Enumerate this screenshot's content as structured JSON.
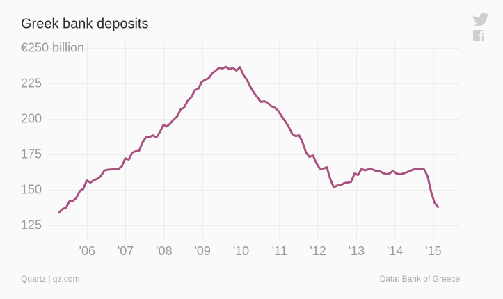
{
  "chart_data": {
    "type": "line",
    "title": "Greek bank deposits",
    "source": "Data: Bank of Greece",
    "credit": "Quartz | qz.com",
    "x": [
      2005.27,
      2005.36,
      2005.45,
      2005.54,
      2005.63,
      2005.72,
      2005.81,
      2005.9,
      2005.99,
      2006.08,
      2006.17,
      2006.26,
      2006.35,
      2006.45,
      2006.54,
      2006.63,
      2006.72,
      2006.81,
      2006.9,
      2006.99,
      2007.08,
      2007.17,
      2007.26,
      2007.35,
      2007.44,
      2007.53,
      2007.62,
      2007.71,
      2007.8,
      2007.89,
      2007.98,
      2008.07,
      2008.16,
      2008.25,
      2008.34,
      2008.43,
      2008.52,
      2008.61,
      2008.71,
      2008.8,
      2008.89,
      2008.98,
      2009.07,
      2009.16,
      2009.25,
      2009.34,
      2009.43,
      2009.52,
      2009.61,
      2009.7,
      2009.79,
      2009.88,
      2009.97,
      2010.06,
      2010.15,
      2010.24,
      2010.33,
      2010.42,
      2010.51,
      2010.6,
      2010.69,
      2010.78,
      2010.87,
      2010.97,
      2011.06,
      2011.15,
      2011.24,
      2011.33,
      2011.42,
      2011.51,
      2011.6,
      2011.69,
      2011.78,
      2011.87,
      2011.96,
      2012.05,
      2012.14,
      2012.23,
      2012.32,
      2012.41,
      2012.5,
      2012.59,
      2012.68,
      2012.77,
      2012.86,
      2012.95,
      2013.04,
      2013.13,
      2013.23,
      2013.32,
      2013.41,
      2013.5,
      2013.59,
      2013.68,
      2013.77,
      2013.86,
      2013.95,
      2014.04,
      2014.13,
      2014.22,
      2014.31,
      2014.4,
      2014.49,
      2014.58,
      2014.67,
      2014.76,
      2014.85,
      2014.94,
      2015.03,
      2015.12
    ],
    "series": [
      {
        "color": "#a8527f",
        "values": [
          134.3,
          136.8,
          137.7,
          142.3,
          142.6,
          144.6,
          149.5,
          151,
          157,
          155.4,
          157,
          158,
          159.8,
          164,
          164.5,
          164.7,
          164.8,
          165,
          166.7,
          172.5,
          171.6,
          176.5,
          177.5,
          177.8,
          183.8,
          187.3,
          187.5,
          188.7,
          187.3,
          191,
          196,
          195,
          197,
          200,
          202,
          207,
          208.3,
          213,
          215.7,
          220.6,
          221.6,
          226.5,
          228,
          229,
          232.4,
          234.3,
          236.3,
          235.8,
          237,
          235.3,
          236.3,
          234.3,
          236.8,
          231.4,
          228,
          223,
          219,
          215.7,
          212.3,
          212.8,
          211.8,
          209.3,
          208.3,
          205.9,
          202,
          198.5,
          194.6,
          189.7,
          188.2,
          188.7,
          183.8,
          176.5,
          173.5,
          174.5,
          169,
          165.2,
          165.3,
          166.2,
          157.8,
          152,
          153.4,
          153.5,
          155,
          155.4,
          155.9,
          161.8,
          160.8,
          165,
          164,
          165,
          164.7,
          163.7,
          163.6,
          162.3,
          161.3,
          161.8,
          163.7,
          161.8,
          161.3,
          161.8,
          162.7,
          163.7,
          164.7,
          165.2,
          165.1,
          164.7,
          159.8,
          149,
          141.2,
          138.2
        ]
      }
    ],
    "xlim": [
      2005.0,
      2015.67
    ],
    "xticks": [
      {
        "value": 2006,
        "label": "'06"
      },
      {
        "value": 2007,
        "label": "'07"
      },
      {
        "value": 2008,
        "label": "'08"
      },
      {
        "value": 2009,
        "label": "'09"
      },
      {
        "value": 2010,
        "label": "'10"
      },
      {
        "value": 2011,
        "label": "'11"
      },
      {
        "value": 2012,
        "label": "'12"
      },
      {
        "value": 2013,
        "label": "'13"
      },
      {
        "value": 2014,
        "label": "'14"
      },
      {
        "value": 2015,
        "label": "'15"
      }
    ],
    "ylim": [
      115,
      255
    ],
    "yticks": [
      125,
      150,
      175,
      200,
      225,
      {
        "value": 250,
        "label": "€250 billion"
      }
    ],
    "grid": true
  }
}
